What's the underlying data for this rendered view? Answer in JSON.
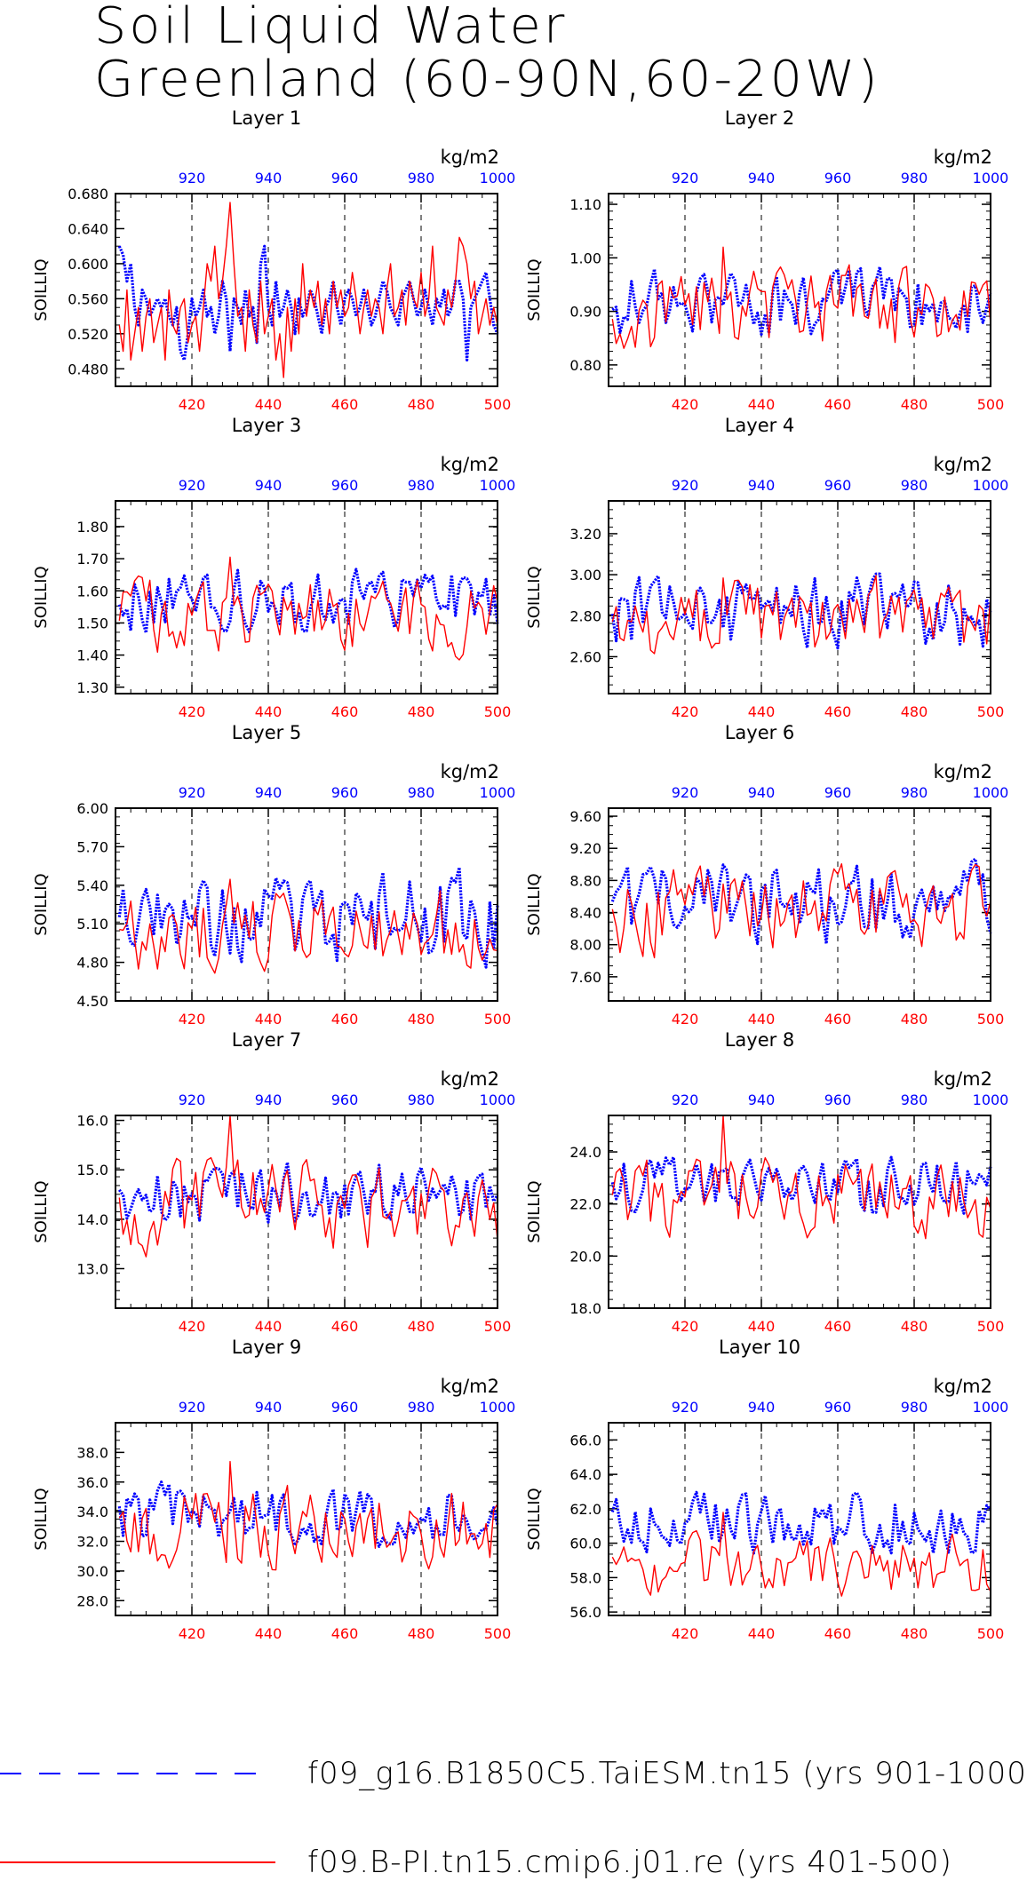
{
  "title": {
    "line1": "Soil Liquid Water",
    "line2": "Greenland (60-90N,60-20W)"
  },
  "legend": [
    {
      "label": "f09_g16.B1850C5.TaiESM.tn15 (yrs 901-1000)",
      "color": "#0000ff",
      "style": "dashed"
    },
    {
      "label": "f09.B-PI.tn15.cmip6.j01.re (yrs 401-500)",
      "color": "#ff0000",
      "style": "solid"
    }
  ],
  "colors": {
    "series_a": "#0000ff",
    "series_b": "#ff0000",
    "axis": "#000000"
  },
  "chart_data": [
    {
      "type": "line",
      "title": "Layer 1",
      "ylabel": "SOILLIQ",
      "units": "kg/m2",
      "ylim": [
        0.46,
        0.68
      ],
      "yticks": [
        "0.480",
        "0.520",
        "0.560",
        "0.600",
        "0.640",
        "0.680"
      ],
      "x_bottom": {
        "range": [
          400,
          500
        ],
        "ticks": [
          "420",
          "440",
          "460",
          "480",
          "500"
        ]
      },
      "x_top": {
        "range": [
          900,
          1000
        ],
        "ticks": [
          "920",
          "940",
          "960",
          "980",
          "1000"
        ]
      },
      "grid": "vertical dashed",
      "series": [
        {
          "name": "f09_g16.B1850C5.TaiESM.tn15 (yrs 901-1000)",
          "axis": "top",
          "x_start": 901,
          "x_end": 1000,
          "mean": 0.555,
          "amp": 0.035,
          "values": [
            0.62,
            0.61,
            0.58,
            0.6,
            0.55,
            0.53,
            0.57,
            0.56,
            0.54,
            0.55,
            0.56,
            0.55,
            0.56,
            0.54,
            0.53,
            0.55,
            0.5,
            0.49,
            0.52,
            0.56,
            0.54,
            0.55,
            0.57,
            0.54,
            0.55,
            0.52,
            0.54,
            0.58,
            0.56,
            0.5,
            0.56,
            0.55,
            0.53,
            0.57,
            0.54,
            0.55,
            0.51,
            0.6,
            0.62,
            0.55,
            0.53,
            0.58,
            0.54,
            0.55,
            0.57,
            0.55,
            0.52,
            0.56,
            0.54,
            0.55,
            0.57,
            0.56,
            0.54,
            0.52,
            0.55,
            0.56,
            0.58,
            0.55,
            0.53,
            0.56,
            0.57,
            0.56,
            0.54,
            0.55,
            0.57,
            0.55,
            0.53,
            0.54,
            0.56,
            0.58,
            0.57,
            0.55,
            0.54,
            0.53,
            0.56,
            0.57,
            0.58,
            0.56,
            0.54,
            0.55,
            0.57,
            0.55,
            0.53,
            0.56,
            0.55,
            0.57,
            0.54,
            0.55,
            0.58,
            0.58,
            0.56,
            0.49,
            0.55,
            0.56,
            0.57,
            0.58,
            0.59,
            0.56,
            0.53,
            0.52
          ]
        },
        {
          "name": "f09.B-PI.tn15.cmip6.j01.re (yrs 401-500)",
          "axis": "bottom",
          "x_start": 401,
          "x_end": 500,
          "mean": 0.545,
          "amp": 0.04,
          "values": [
            0.53,
            0.5,
            0.57,
            0.49,
            0.52,
            0.55,
            0.5,
            0.54,
            0.56,
            0.51,
            0.53,
            0.55,
            0.49,
            0.57,
            0.53,
            0.52,
            0.55,
            0.56,
            0.51,
            0.53,
            0.54,
            0.5,
            0.55,
            0.6,
            0.58,
            0.62,
            0.56,
            0.58,
            0.62,
            0.67,
            0.6,
            0.54,
            0.55,
            0.5,
            0.57,
            0.53,
            0.51,
            0.58,
            0.52,
            0.54,
            0.56,
            0.49,
            0.52,
            0.47,
            0.55,
            0.5,
            0.56,
            0.52,
            0.6,
            0.54,
            0.57,
            0.55,
            0.58,
            0.53,
            0.56,
            0.52,
            0.58,
            0.55,
            0.57,
            0.54,
            0.55,
            0.59,
            0.56,
            0.52,
            0.55,
            0.57,
            0.54,
            0.56,
            0.55,
            0.52,
            0.57,
            0.6,
            0.54,
            0.55,
            0.57,
            0.53,
            0.58,
            0.56,
            0.55,
            0.59,
            0.54,
            0.56,
            0.62,
            0.55,
            0.54,
            0.53,
            0.57,
            0.55,
            0.58,
            0.63,
            0.62,
            0.6,
            0.56,
            0.58,
            0.52,
            0.54,
            0.56,
            0.53,
            0.55,
            0.53
          ]
        }
      ]
    },
    {
      "type": "line",
      "title": "Layer 2",
      "ylabel": "SOILLIQ",
      "units": "kg/m2",
      "ylim": [
        0.76,
        1.12
      ],
      "yticks": [
        "0.80",
        "0.90",
        "1.00",
        "1.10"
      ],
      "x_bottom": {
        "range": [
          400,
          500
        ],
        "ticks": [
          "420",
          "440",
          "460",
          "480",
          "500"
        ]
      },
      "x_top": {
        "range": [
          900,
          1000
        ],
        "ticks": [
          "920",
          "940",
          "960",
          "980",
          "1000"
        ]
      },
      "grid": "vertical dashed",
      "series": [
        {
          "name": "f09_g16.B1850C5.TaiESM.tn15 (yrs 901-1000)",
          "axis": "top",
          "x_start": 901,
          "x_end": 1000,
          "mean": 0.915,
          "amp": 0.055
        },
        {
          "name": "f09.B-PI.tn15.cmip6.j01.re (yrs 401-500)",
          "axis": "bottom",
          "x_start": 401,
          "x_end": 500,
          "mean": 0.9,
          "amp": 0.07
        }
      ]
    },
    {
      "type": "line",
      "title": "Layer 3",
      "ylabel": "SOILLIQ",
      "units": "kg/m2",
      "ylim": [
        1.28,
        1.88
      ],
      "yticks": [
        "1.30",
        "1.40",
        "1.50",
        "1.60",
        "1.70",
        "1.80"
      ],
      "x_bottom": {
        "range": [
          400,
          500
        ],
        "ticks": [
          "420",
          "440",
          "460",
          "480",
          "500"
        ]
      },
      "x_top": {
        "range": [
          900,
          1000
        ],
        "ticks": [
          "920",
          "940",
          "960",
          "980",
          "1000"
        ]
      },
      "grid": "vertical dashed",
      "series": [
        {
          "name": "f09_g16.B1850C5.TaiESM.tn15 (yrs 901-1000)",
          "axis": "top",
          "x_start": 901,
          "x_end": 1000,
          "mean": 1.57,
          "amp": 0.09
        },
        {
          "name": "f09.B-PI.tn15.cmip6.j01.re (yrs 401-500)",
          "axis": "bottom",
          "x_start": 401,
          "x_end": 500,
          "mean": 1.52,
          "amp": 0.1
        }
      ]
    },
    {
      "type": "line",
      "title": "Layer 4",
      "ylabel": "SOILLIQ",
      "units": "kg/m2",
      "ylim": [
        2.42,
        3.36
      ],
      "yticks": [
        "2.60",
        "2.80",
        "3.00",
        "3.20"
      ],
      "x_bottom": {
        "range": [
          400,
          500
        ],
        "ticks": [
          "420",
          "440",
          "460",
          "480",
          "500"
        ]
      },
      "x_top": {
        "range": [
          900,
          1000
        ],
        "ticks": [
          "920",
          "940",
          "960",
          "980",
          "1000"
        ]
      },
      "grid": "vertical dashed",
      "series": [
        {
          "name": "f09_g16.B1850C5.TaiESM.tn15 (yrs 901-1000)",
          "axis": "top",
          "x_start": 901,
          "x_end": 1000,
          "mean": 2.82,
          "amp": 0.16
        },
        {
          "name": "f09.B-PI.tn15.cmip6.j01.re (yrs 401-500)",
          "axis": "bottom",
          "x_start": 401,
          "x_end": 500,
          "mean": 2.78,
          "amp": 0.17
        }
      ]
    },
    {
      "type": "line",
      "title": "Layer 5",
      "ylabel": "SOILLIQ",
      "units": "kg/m2",
      "ylim": [
        4.5,
        6.0
      ],
      "yticks": [
        "4.50",
        "4.80",
        "5.10",
        "5.40",
        "5.70",
        "6.00"
      ],
      "x_bottom": {
        "range": [
          400,
          500
        ],
        "ticks": [
          "420",
          "440",
          "460",
          "480",
          "500"
        ]
      },
      "x_top": {
        "range": [
          900,
          1000
        ],
        "ticks": [
          "920",
          "940",
          "960",
          "980",
          "1000"
        ]
      },
      "grid": "vertical dashed",
      "series": [
        {
          "name": "f09_g16.B1850C5.TaiESM.tn15 (yrs 901-1000)",
          "axis": "top",
          "x_start": 901,
          "x_end": 1000,
          "mean": 5.15,
          "amp": 0.3
        },
        {
          "name": "f09.B-PI.tn15.cmip6.j01.re (yrs 401-500)",
          "axis": "bottom",
          "x_start": 401,
          "x_end": 500,
          "mean": 5.05,
          "amp": 0.28
        }
      ]
    },
    {
      "type": "line",
      "title": "Layer 6",
      "ylabel": "SOILLIQ",
      "units": "kg/m2",
      "ylim": [
        7.3,
        9.7
      ],
      "yticks": [
        "7.60",
        "8.00",
        "8.40",
        "8.80",
        "9.20",
        "9.60"
      ],
      "x_bottom": {
        "range": [
          400,
          500
        ],
        "ticks": [
          "420",
          "440",
          "460",
          "480",
          "500"
        ]
      },
      "x_top": {
        "range": [
          900,
          1000
        ],
        "ticks": [
          "920",
          "940",
          "960",
          "980",
          "1000"
        ]
      },
      "grid": "vertical dashed",
      "series": [
        {
          "name": "f09_g16.B1850C5.TaiESM.tn15 (yrs 901-1000)",
          "axis": "top",
          "x_start": 901,
          "x_end": 1000,
          "mean": 8.5,
          "amp": 0.45
        },
        {
          "name": "f09.B-PI.tn15.cmip6.j01.re (yrs 401-500)",
          "axis": "bottom",
          "x_start": 401,
          "x_end": 500,
          "mean": 8.4,
          "amp": 0.45
        }
      ]
    },
    {
      "type": "line",
      "title": "Layer 7",
      "ylabel": "SOILLIQ",
      "units": "kg/m2",
      "ylim": [
        12.2,
        16.1
      ],
      "yticks": [
        "13.0",
        "14.0",
        "15.0",
        "16.0"
      ],
      "x_bottom": {
        "range": [
          400,
          500
        ],
        "ticks": [
          "420",
          "440",
          "460",
          "480",
          "500"
        ]
      },
      "x_top": {
        "range": [
          900,
          1000
        ],
        "ticks": [
          "920",
          "940",
          "960",
          "980",
          "1000"
        ]
      },
      "grid": "vertical dashed",
      "series": [
        {
          "name": "f09_g16.B1850C5.TaiESM.tn15 (yrs 901-1000)",
          "axis": "top",
          "x_start": 901,
          "x_end": 1000,
          "mean": 14.5,
          "amp": 0.6
        },
        {
          "name": "f09.B-PI.tn15.cmip6.j01.re (yrs 401-500)",
          "axis": "bottom",
          "x_start": 401,
          "x_end": 500,
          "mean": 14.3,
          "amp": 0.8
        }
      ]
    },
    {
      "type": "line",
      "title": "Layer 8",
      "ylabel": "SOILLIQ",
      "units": "kg/m2",
      "ylim": [
        18.0,
        25.4
      ],
      "yticks": [
        "18.0",
        "20.0",
        "22.0",
        "24.0"
      ],
      "x_bottom": {
        "range": [
          400,
          500
        ],
        "ticks": [
          "420",
          "440",
          "460",
          "480",
          "500"
        ]
      },
      "x_top": {
        "range": [
          900,
          1000
        ],
        "ticks": [
          "920",
          "940",
          "960",
          "980",
          "1000"
        ]
      },
      "grid": "vertical dashed",
      "series": [
        {
          "name": "f09_g16.B1850C5.TaiESM.tn15 (yrs 901-1000)",
          "axis": "top",
          "x_start": 901,
          "x_end": 1000,
          "mean": 22.6,
          "amp": 1.0
        },
        {
          "name": "f09.B-PI.tn15.cmip6.j01.re (yrs 401-500)",
          "axis": "bottom",
          "x_start": 401,
          "x_end": 500,
          "mean": 22.0,
          "amp": 1.4
        }
      ]
    },
    {
      "type": "line",
      "title": "Layer 9",
      "ylabel": "SOILLIQ",
      "units": "kg/m2",
      "ylim": [
        27.0,
        40.0
      ],
      "yticks": [
        "28.0",
        "30.0",
        "32.0",
        "34.0",
        "36.0",
        "38.0"
      ],
      "x_bottom": {
        "range": [
          400,
          500
        ],
        "ticks": [
          "420",
          "440",
          "460",
          "480",
          "500"
        ]
      },
      "x_top": {
        "range": [
          900,
          1000
        ],
        "ticks": [
          "920",
          "940",
          "960",
          "980",
          "1000"
        ]
      },
      "grid": "vertical dashed",
      "series": [
        {
          "name": "f09_g16.B1850C5.TaiESM.tn15 (yrs 901-1000)",
          "axis": "top",
          "x_start": 901,
          "x_end": 1000,
          "mean": 33.8,
          "amp": 1.8
        },
        {
          "name": "f09.B-PI.tn15.cmip6.j01.re (yrs 401-500)",
          "axis": "bottom",
          "x_start": 401,
          "x_end": 500,
          "mean": 32.8,
          "amp": 2.4
        }
      ]
    },
    {
      "type": "line",
      "title": "Layer 10",
      "ylabel": "SOILLIQ",
      "units": "kg/m2",
      "ylim": [
        55.8,
        67.0
      ],
      "yticks": [
        "56.0",
        "58.0",
        "60.0",
        "62.0",
        "64.0",
        "66.0"
      ],
      "x_bottom": {
        "range": [
          400,
          500
        ],
        "ticks": [
          "420",
          "440",
          "460",
          "480",
          "500"
        ]
      },
      "x_top": {
        "range": [
          900,
          1000
        ],
        "ticks": [
          "920",
          "940",
          "960",
          "980",
          "1000"
        ]
      },
      "grid": "vertical dashed",
      "series": [
        {
          "name": "f09_g16.B1850C5.TaiESM.tn15 (yrs 901-1000)",
          "axis": "top",
          "x_start": 901,
          "x_end": 1000,
          "mean": 61.2,
          "amp": 1.6
        },
        {
          "name": "f09.B-PI.tn15.cmip6.j01.re (yrs 401-500)",
          "axis": "bottom",
          "x_start": 401,
          "x_end": 500,
          "mean": 58.6,
          "amp": 1.5
        }
      ]
    }
  ]
}
